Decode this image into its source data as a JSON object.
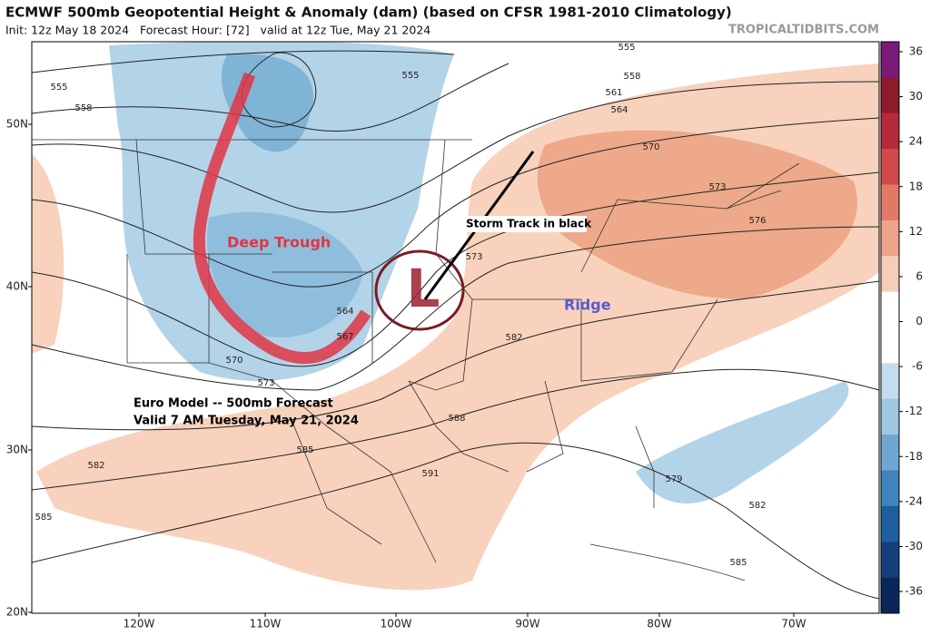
{
  "header": {
    "title": "ECMWF 500mb Geopotential Height & Anomaly (dam) (based on CFSR 1981-2010 Climatology)",
    "subtitle": "Init: 12z May 18 2024   Forecast Hour: [72]   valid at 12z Tue, May 21 2024",
    "credit": "TROPICALTIDBITS.COM"
  },
  "colorbar": {
    "ticks": [
      36,
      30,
      24,
      18,
      12,
      6,
      0,
      -6,
      -12,
      -18,
      -24,
      -30,
      -36
    ]
  },
  "axes": {
    "lat_labels": [
      "50N",
      "40N",
      "30N",
      "20N"
    ],
    "lon_labels": [
      "120W",
      "110W",
      "100W",
      "90W",
      "80W",
      "70W"
    ]
  },
  "contour_labels": [
    555,
    555,
    555,
    558,
    558,
    561,
    564,
    570,
    573,
    576,
    573,
    564,
    567,
    570,
    573,
    582,
    588,
    585,
    582,
    591,
    579,
    582,
    585,
    585
  ],
  "annotations": {
    "deep_trough": "Deep Trough",
    "ridge": "Ridge",
    "storm_track": "Storm Track in black",
    "low": "L",
    "caption": [
      "Euro Model -- 500mb Forecast",
      "Valid 7 AM Tuesday, May 21, 2024"
    ]
  }
}
